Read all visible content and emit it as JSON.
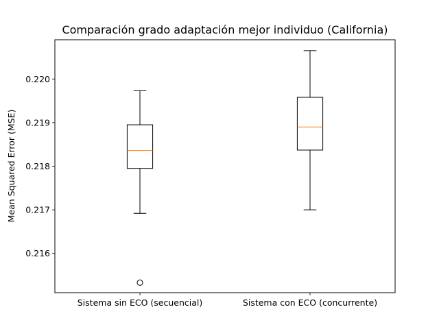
{
  "chart_data": {
    "type": "box",
    "title": "Comparación grado adaptación mejor individuo (California)",
    "xlabel": "",
    "ylabel": "Mean Squared Error (MSE)",
    "ylim": [
      0.2151,
      0.2209
    ],
    "yticks": [
      "0.216",
      "0.217",
      "0.218",
      "0.219",
      "0.220"
    ],
    "ytick_values": [
      0.216,
      0.217,
      0.218,
      0.219,
      0.22
    ],
    "categories": [
      "Sistema sin ECO (secuencial)",
      "Sistema con ECO (concurrente)"
    ],
    "boxes": [
      {
        "whisker_low": 0.21692,
        "q1": 0.21795,
        "median": 0.21836,
        "q3": 0.21895,
        "whisker_high": 0.21973,
        "outliers": [
          0.21533
        ]
      },
      {
        "whisker_low": 0.217,
        "q1": 0.21837,
        "median": 0.2189,
        "q3": 0.21958,
        "whisker_high": 0.22065,
        "outliers": []
      }
    ],
    "grid": false,
    "colors": {
      "box": "#000000",
      "median": "#ff7f0e",
      "outlier": "#000000"
    }
  }
}
